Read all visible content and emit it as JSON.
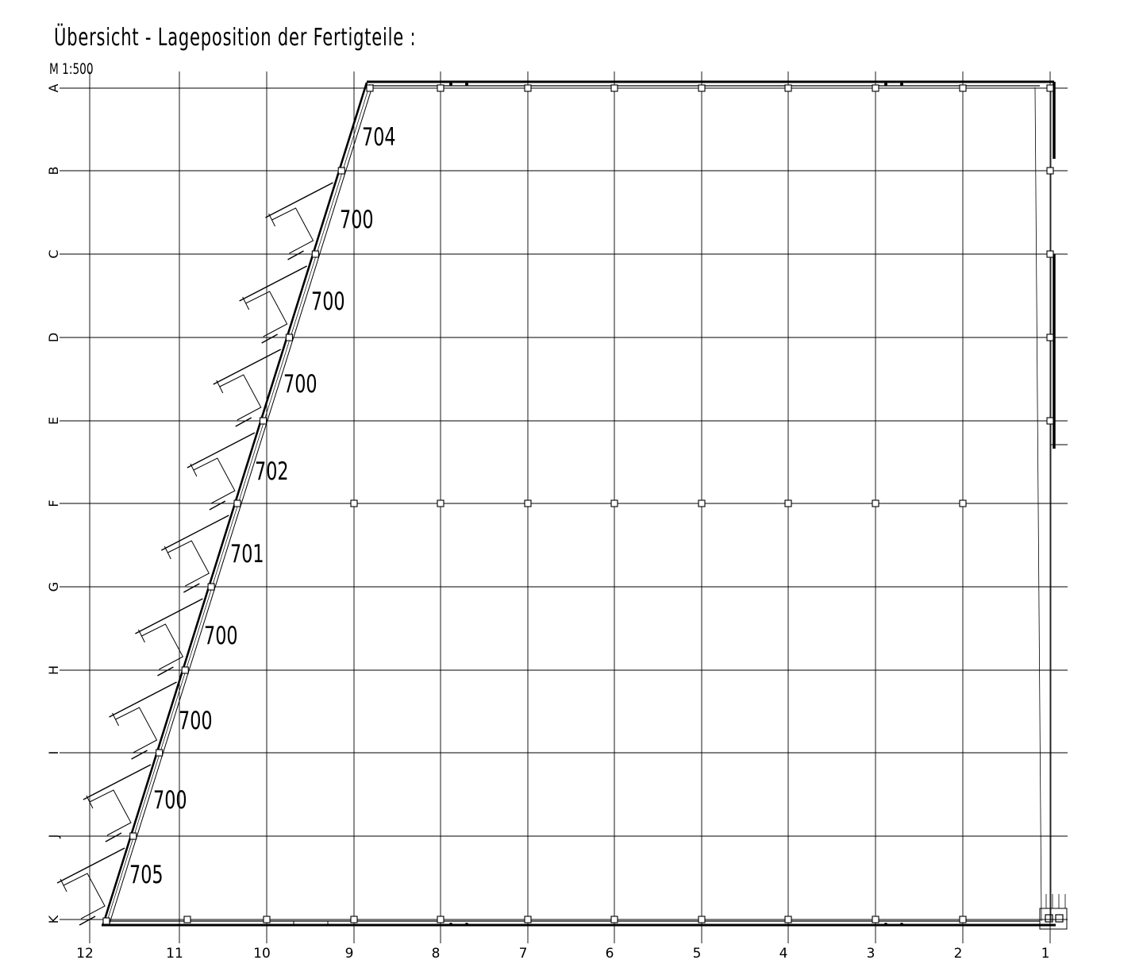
{
  "title": "Übersicht - Lageposition der Fertigteile :",
  "scale": "M 1:500",
  "row_axes": [
    "A",
    "B",
    "C",
    "D",
    "E",
    "F",
    "G",
    "H",
    "I",
    "J",
    "K"
  ],
  "column_axes": [
    "12",
    "11",
    "10",
    "9",
    "8",
    "7",
    "6",
    "5",
    "4",
    "3",
    "2",
    "1"
  ],
  "element_labels": [
    "704",
    "700",
    "700",
    "700",
    "702",
    "701",
    "700",
    "700",
    "700",
    "705"
  ]
}
